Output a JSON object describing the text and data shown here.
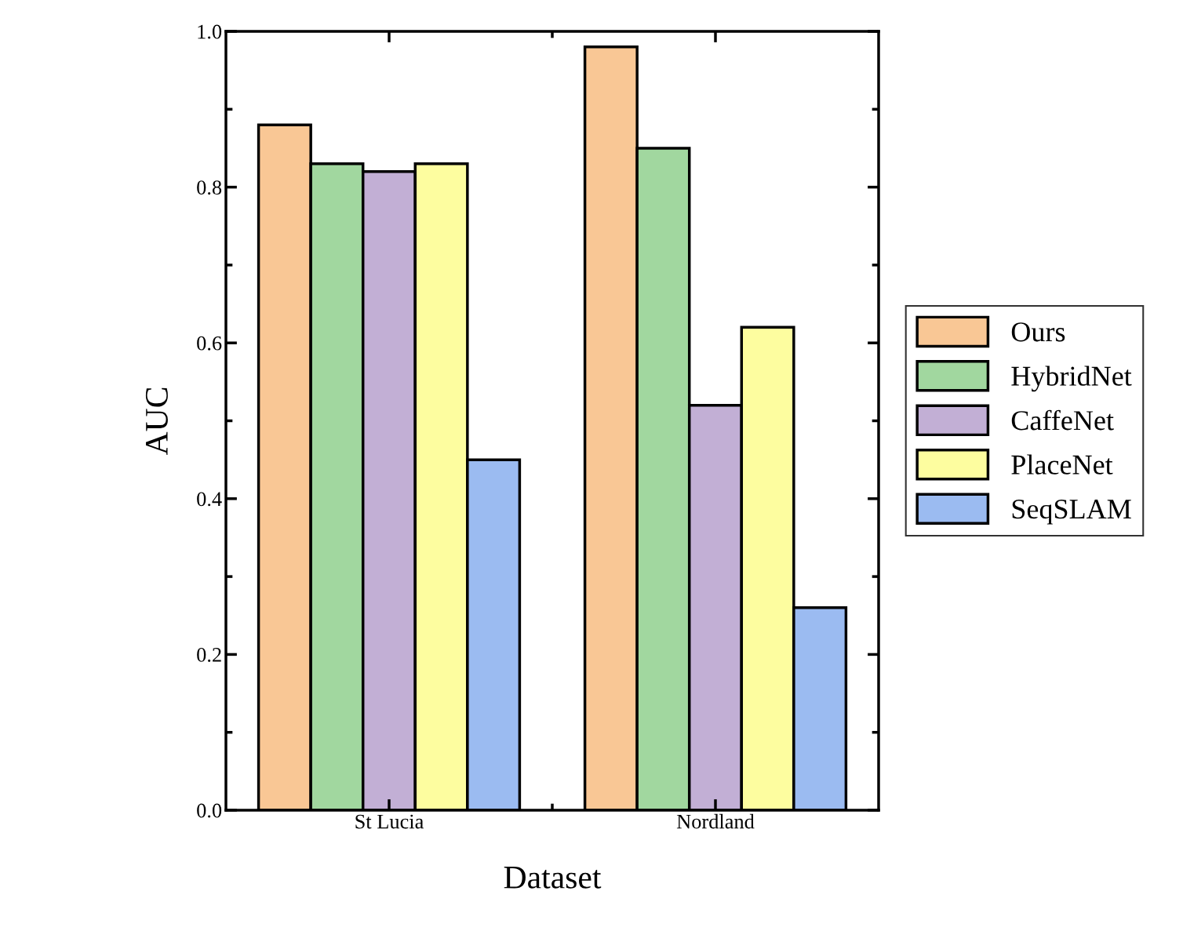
{
  "chart_data": {
    "type": "bar",
    "xlabel": "Dataset",
    "ylabel": "AUC",
    "categories": [
      "St Lucia",
      "Nordland"
    ],
    "series": [
      {
        "name": "Ours",
        "color": "#f9c795",
        "values": [
          0.88,
          0.98
        ]
      },
      {
        "name": "HybridNet",
        "color": "#a1d79f",
        "values": [
          0.83,
          0.85
        ]
      },
      {
        "name": "CaffeNet",
        "color": "#c2afd5",
        "values": [
          0.82,
          0.52
        ]
      },
      {
        "name": "PlaceNet",
        "color": "#fdfd9f",
        "values": [
          0.83,
          0.62
        ]
      },
      {
        "name": "SeqSLAM",
        "color": "#9bbbf1",
        "values": [
          0.45,
          0.26
        ]
      }
    ],
    "ylim": [
      0.0,
      1.0
    ],
    "yticks": [
      {
        "value": 0.0,
        "label": "0.0"
      },
      {
        "value": 0.2,
        "label": "0.2"
      },
      {
        "value": 0.4,
        "label": "0.4"
      },
      {
        "value": 0.6,
        "label": "0.6"
      },
      {
        "value": 0.8,
        "label": "0.8"
      },
      {
        "value": 1.0,
        "label": "1.0"
      }
    ],
    "legend": "right",
    "grid": false
  }
}
